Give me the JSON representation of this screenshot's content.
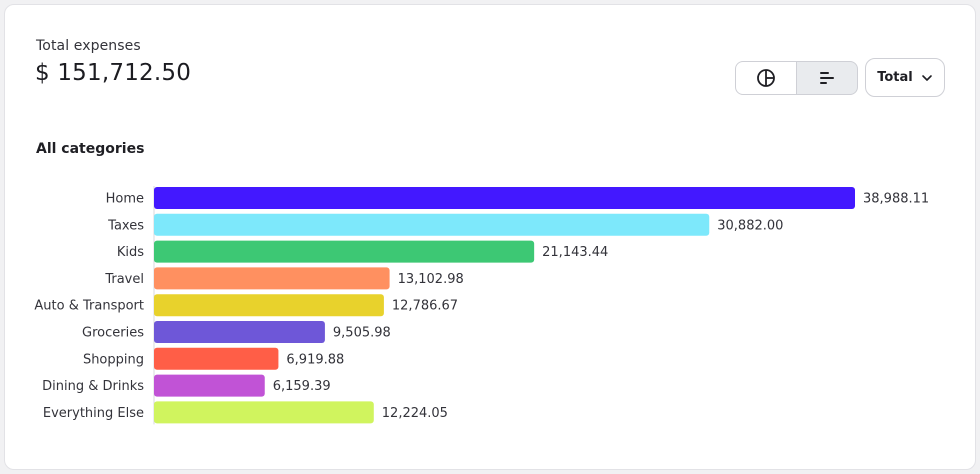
{
  "header": {
    "label": "Total expenses",
    "amount": "$ 151,712.50"
  },
  "controls": {
    "pie_view_icon": "pie-chart-icon",
    "bar_view_icon": "horizontal-bar-chart-icon",
    "active_view": "bar",
    "dropdown_label": "Total",
    "dropdown_icon": "chevron-down-icon"
  },
  "section_title": "All categories",
  "colors": {
    "border": "#cfd0d6",
    "active_toggle_bg": "#e9ebee"
  },
  "chart_data": {
    "type": "bar",
    "orientation": "horizontal",
    "title": "All categories",
    "categories": [
      "Home",
      "Taxes",
      "Kids",
      "Travel",
      "Auto & Transport",
      "Groceries",
      "Shopping",
      "Dining & Drinks",
      "Everything Else"
    ],
    "values": [
      38988.11,
      30882.0,
      21143.44,
      13102.98,
      12786.67,
      9505.98,
      6919.88,
      6159.39,
      12224.05
    ],
    "value_labels": [
      "38,988.11",
      "30,882.00",
      "21,143.44",
      "13,102.98",
      "12,786.67",
      "9,505.98",
      "6,919.88",
      "6,159.39",
      "12,224.05"
    ],
    "colors": [
      "#4318ff",
      "#7de8fb",
      "#3dc874",
      "#ff9060",
      "#e8d22c",
      "#6e57d8",
      "#ff5e47",
      "#c153d6",
      "#d0f45e"
    ],
    "grid": false,
    "legend": "none"
  }
}
